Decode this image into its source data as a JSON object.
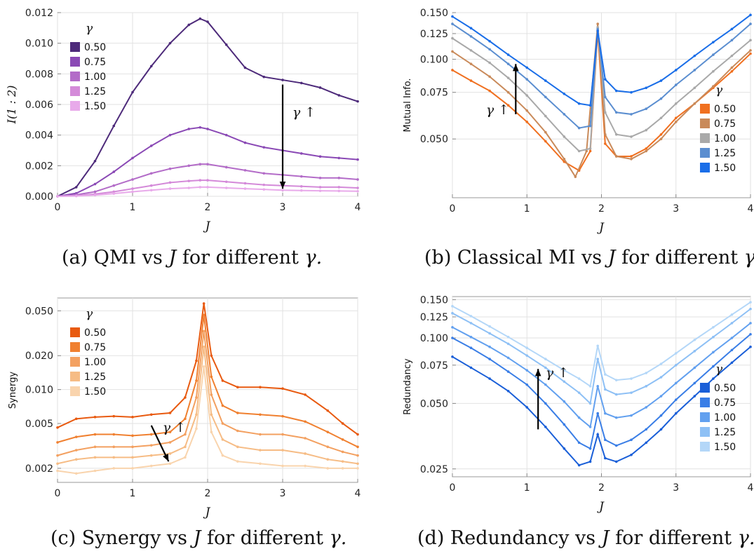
{
  "figure": {
    "captions": [
      {
        "label": "(a) QMI vs",
        "var": "J",
        "rest": "for different",
        "sym": "γ."
      },
      {
        "label": "(b) Classical MI vs",
        "var": "J",
        "rest": "for different",
        "sym": "γ."
      },
      {
        "label": "(c) Synergy vs",
        "var": "J",
        "rest": "for different",
        "sym": "γ."
      },
      {
        "label": "(d) Redundancy vs",
        "var": "J",
        "rest": "for different",
        "sym": "γ."
      }
    ]
  },
  "chart_data": [
    {
      "type": "line",
      "ylabel": "I(1 : 2)",
      "xlabel": "J",
      "xlim": [
        0,
        4
      ],
      "ylim": [
        0,
        0.012
      ],
      "log_y": false,
      "xticks": [
        "0",
        "1",
        "2",
        "3",
        "4"
      ],
      "yticks": [
        "0.000",
        "0.002",
        "0.004",
        "0.006",
        "0.008",
        "0.010",
        "0.012"
      ],
      "legend_title": "γ",
      "legend_placement": "upper-left",
      "annotation": "γ ↑",
      "annotation_direction": "down",
      "grid": true,
      "series": [
        {
          "name": "0.50",
          "color": "#4d2a7a",
          "x": [
            0,
            0.25,
            0.5,
            0.75,
            1,
            1.25,
            1.5,
            1.75,
            1.9,
            2,
            2.25,
            2.5,
            2.75,
            3,
            3.25,
            3.5,
            3.75,
            4
          ],
          "y": [
            0,
            0.0006,
            0.0023,
            0.0046,
            0.0068,
            0.0085,
            0.01,
            0.0112,
            0.0116,
            0.0114,
            0.0099,
            0.0084,
            0.0078,
            0.0076,
            0.0074,
            0.0071,
            0.0066,
            0.0062
          ]
        },
        {
          "name": "0.75",
          "color": "#8a49b5",
          "x": [
            0,
            0.25,
            0.5,
            0.75,
            1,
            1.25,
            1.5,
            1.75,
            1.9,
            2,
            2.25,
            2.5,
            2.75,
            3,
            3.25,
            3.5,
            3.75,
            4
          ],
          "y": [
            0,
            0.0002,
            0.0008,
            0.0016,
            0.0025,
            0.0033,
            0.004,
            0.0044,
            0.0045,
            0.0044,
            0.004,
            0.0035,
            0.0032,
            0.003,
            0.0028,
            0.0026,
            0.0025,
            0.0024
          ]
        },
        {
          "name": "1.00",
          "color": "#b36cc8",
          "x": [
            0,
            0.25,
            0.5,
            0.75,
            1,
            1.25,
            1.5,
            1.75,
            1.9,
            2,
            2.25,
            2.5,
            2.75,
            3,
            3.25,
            3.5,
            3.75,
            4
          ],
          "y": [
            0,
            0.0001,
            0.0003,
            0.0007,
            0.0011,
            0.0015,
            0.0018,
            0.002,
            0.0021,
            0.0021,
            0.0019,
            0.0017,
            0.0015,
            0.0014,
            0.0013,
            0.0012,
            0.0012,
            0.0011
          ]
        },
        {
          "name": "1.25",
          "color": "#d48ad9",
          "x": [
            0,
            0.25,
            0.5,
            0.75,
            1,
            1.25,
            1.5,
            1.75,
            1.9,
            2,
            2.25,
            2.5,
            2.75,
            3,
            3.25,
            3.5,
            3.75,
            4
          ],
          "y": [
            0,
            4e-05,
            0.00015,
            0.0003,
            0.0005,
            0.0007,
            0.0009,
            0.001,
            0.00105,
            0.00105,
            0.00095,
            0.00085,
            0.00075,
            0.0007,
            0.00065,
            0.0006,
            0.0006,
            0.00055
          ]
        },
        {
          "name": "1.50",
          "color": "#e8aaea",
          "x": [
            0,
            0.25,
            0.5,
            0.75,
            1,
            1.25,
            1.5,
            1.75,
            1.9,
            2,
            2.25,
            2.5,
            2.75,
            3,
            3.25,
            3.5,
            3.75,
            4
          ],
          "y": [
            0,
            2e-05,
            8e-05,
            0.00018,
            0.0003,
            0.0004,
            0.0005,
            0.00055,
            0.0006,
            0.0006,
            0.00055,
            0.0005,
            0.00045,
            0.0004,
            0.00038,
            0.00036,
            0.00035,
            0.00033
          ]
        }
      ]
    },
    {
      "type": "line",
      "ylabel": "Mutual Info.",
      "xlabel": "J",
      "xlim": [
        0,
        4
      ],
      "ylim": [
        0.03,
        0.15
      ],
      "log_y": true,
      "xticks": [
        "0",
        "1",
        "2",
        "3",
        "4"
      ],
      "yticks": [
        "0.050",
        "0.075",
        "0.100",
        "0.125",
        "0.150"
      ],
      "ytick_values": [
        0.05,
        0.075,
        0.1,
        0.125,
        0.15
      ],
      "legend_title": "γ",
      "legend_placement": "lower-right",
      "annotation": "γ ↑",
      "annotation_direction": "up",
      "grid": true,
      "series": [
        {
          "name": "0.50",
          "color": "#f07020",
          "x": [
            0,
            0.25,
            0.5,
            0.75,
            1,
            1.25,
            1.5,
            1.7,
            1.85,
            1.95,
            2.05,
            2.2,
            2.4,
            2.6,
            2.8,
            3,
            3.25,
            3.5,
            3.75,
            4
          ],
          "y": [
            0.091,
            0.083,
            0.076,
            0.067,
            0.058,
            0.049,
            0.041,
            0.038,
            0.045,
            0.128,
            0.048,
            0.043,
            0.043,
            0.046,
            0.052,
            0.06,
            0.068,
            0.078,
            0.09,
            0.105
          ]
        },
        {
          "name": "0.75",
          "color": "#c98a5a",
          "x": [
            0,
            0.25,
            0.5,
            0.75,
            1,
            1.25,
            1.5,
            1.65,
            1.8,
            1.95,
            2.05,
            2.2,
            2.4,
            2.6,
            2.8,
            3,
            3.25,
            3.5,
            3.75,
            4
          ],
          "y": [
            0.107,
            0.096,
            0.086,
            0.075,
            0.064,
            0.053,
            0.042,
            0.036,
            0.045,
            0.136,
            0.052,
            0.043,
            0.042,
            0.045,
            0.05,
            0.058,
            0.068,
            0.079,
            0.093,
            0.108
          ]
        },
        {
          "name": "1.00",
          "color": "#a9a9a9",
          "x": [
            0,
            0.25,
            0.5,
            0.75,
            1,
            1.25,
            1.5,
            1.7,
            1.85,
            1.95,
            2.05,
            2.2,
            2.4,
            2.6,
            2.8,
            3,
            3.25,
            3.5,
            3.75,
            4
          ],
          "y": [
            0.12,
            0.108,
            0.097,
            0.085,
            0.073,
            0.061,
            0.051,
            0.045,
            0.046,
            0.132,
            0.063,
            0.052,
            0.051,
            0.054,
            0.06,
            0.068,
            0.078,
            0.09,
            0.103,
            0.118
          ]
        },
        {
          "name": "1.25",
          "color": "#5b8ed0",
          "x": [
            0,
            0.25,
            0.5,
            0.75,
            1,
            1.25,
            1.5,
            1.7,
            1.85,
            1.95,
            2.05,
            2.2,
            2.4,
            2.6,
            2.8,
            3,
            3.25,
            3.5,
            3.75,
            4
          ],
          "y": [
            0.136,
            0.122,
            0.109,
            0.096,
            0.084,
            0.072,
            0.062,
            0.055,
            0.056,
            0.13,
            0.072,
            0.063,
            0.062,
            0.065,
            0.071,
            0.08,
            0.091,
            0.104,
            0.118,
            0.136
          ]
        },
        {
          "name": "1.50",
          "color": "#1a6ee8",
          "x": [
            0,
            0.25,
            0.5,
            0.75,
            1,
            1.25,
            1.5,
            1.7,
            1.85,
            1.95,
            2.05,
            2.2,
            2.4,
            2.6,
            2.8,
            3,
            3.25,
            3.5,
            3.75,
            4
          ],
          "y": [
            0.145,
            0.131,
            0.117,
            0.104,
            0.093,
            0.083,
            0.074,
            0.068,
            0.067,
            0.128,
            0.084,
            0.076,
            0.075,
            0.078,
            0.083,
            0.091,
            0.103,
            0.116,
            0.13,
            0.147
          ]
        }
      ]
    },
    {
      "type": "line",
      "ylabel": "Synergy",
      "xlabel": "J",
      "xlim": [
        0,
        4
      ],
      "ylim": [
        0.0015,
        0.065
      ],
      "log_y": true,
      "xticks": [
        "0",
        "1",
        "2",
        "3",
        "4"
      ],
      "yticks": [
        "0.002",
        "0.005",
        "0.010",
        "0.020",
        "0.050"
      ],
      "ytick_values": [
        0.002,
        0.005,
        0.01,
        0.02,
        0.05
      ],
      "legend_title": "γ",
      "legend_placement": "upper-left",
      "annotation": "γ ↑",
      "annotation_direction": "down",
      "grid": true,
      "series": [
        {
          "name": "0.50",
          "color": "#e85a10",
          "x": [
            0,
            0.25,
            0.5,
            0.75,
            1,
            1.25,
            1.5,
            1.7,
            1.85,
            1.95,
            2.05,
            2.2,
            2.4,
            2.7,
            3,
            3.3,
            3.6,
            3.8,
            4
          ],
          "y": [
            0.0046,
            0.0055,
            0.0057,
            0.0058,
            0.0057,
            0.006,
            0.0062,
            0.0085,
            0.018,
            0.058,
            0.02,
            0.012,
            0.0105,
            0.0105,
            0.0102,
            0.009,
            0.0065,
            0.005,
            0.004
          ]
        },
        {
          "name": "0.75",
          "color": "#f08030",
          "x": [
            0,
            0.25,
            0.5,
            0.75,
            1,
            1.25,
            1.5,
            1.7,
            1.85,
            1.95,
            2.05,
            2.2,
            2.4,
            2.7,
            3,
            3.3,
            3.6,
            3.8,
            4
          ],
          "y": [
            0.0034,
            0.0038,
            0.004,
            0.004,
            0.0039,
            0.004,
            0.0042,
            0.0055,
            0.012,
            0.046,
            0.013,
            0.0072,
            0.0062,
            0.006,
            0.0058,
            0.0052,
            0.0042,
            0.0036,
            0.0031
          ]
        },
        {
          "name": "1.00",
          "color": "#f3a060",
          "x": [
            0,
            0.25,
            0.5,
            0.75,
            1,
            1.25,
            1.5,
            1.7,
            1.85,
            1.95,
            2.05,
            2.2,
            2.4,
            2.7,
            3,
            3.3,
            3.6,
            3.8,
            4
          ],
          "y": [
            0.0026,
            0.0029,
            0.0031,
            0.0031,
            0.0031,
            0.0032,
            0.0034,
            0.004,
            0.0085,
            0.033,
            0.009,
            0.005,
            0.0043,
            0.004,
            0.004,
            0.0037,
            0.0031,
            0.0028,
            0.0026
          ]
        },
        {
          "name": "1.25",
          "color": "#f6bc85",
          "x": [
            0,
            0.25,
            0.5,
            0.75,
            1,
            1.25,
            1.5,
            1.7,
            1.85,
            1.95,
            2.05,
            2.2,
            2.4,
            2.7,
            3,
            3.3,
            3.6,
            3.8,
            4
          ],
          "y": [
            0.0022,
            0.0024,
            0.0025,
            0.0025,
            0.0025,
            0.0026,
            0.0027,
            0.0031,
            0.006,
            0.024,
            0.006,
            0.0036,
            0.0031,
            0.0029,
            0.0029,
            0.0027,
            0.0024,
            0.0023,
            0.0022
          ]
        },
        {
          "name": "1.50",
          "color": "#f9d4ad",
          "x": [
            0,
            0.25,
            0.5,
            0.75,
            1,
            1.25,
            1.5,
            1.7,
            1.85,
            1.95,
            2.05,
            2.2,
            2.4,
            2.7,
            3,
            3.3,
            3.6,
            3.8,
            4
          ],
          "y": [
            0.0019,
            0.0018,
            0.0019,
            0.002,
            0.002,
            0.0021,
            0.0022,
            0.0025,
            0.0045,
            0.016,
            0.0042,
            0.0026,
            0.0023,
            0.0022,
            0.0021,
            0.0021,
            0.002,
            0.002,
            0.002
          ]
        }
      ]
    },
    {
      "type": "line",
      "ylabel": "Redundancy",
      "xlabel": "J",
      "xlim": [
        0,
        4
      ],
      "ylim": [
        0.023,
        0.155
      ],
      "log_y": true,
      "xticks": [
        "0",
        "1",
        "2",
        "3",
        "4"
      ],
      "yticks": [
        "0.025",
        "0.050",
        "0.075",
        "0.100",
        "0.125",
        "0.150"
      ],
      "ytick_values": [
        0.025,
        0.05,
        0.075,
        0.1,
        0.125,
        0.15
      ],
      "legend_title": "γ",
      "legend_placement": "lower-right",
      "annotation": "γ ↑",
      "annotation_direction": "up",
      "grid": true,
      "series": [
        {
          "name": "0.50",
          "color": "#1a5fd8",
          "x": [
            0,
            0.25,
            0.5,
            0.75,
            1,
            1.25,
            1.5,
            1.7,
            1.85,
            1.95,
            2.05,
            2.2,
            2.4,
            2.6,
            2.8,
            3,
            3.25,
            3.5,
            3.75,
            4
          ],
          "y": [
            0.082,
            0.073,
            0.065,
            0.057,
            0.048,
            0.039,
            0.031,
            0.026,
            0.027,
            0.036,
            0.028,
            0.027,
            0.029,
            0.033,
            0.038,
            0.045,
            0.054,
            0.065,
            0.077,
            0.091
          ]
        },
        {
          "name": "0.75",
          "color": "#3a7ee6",
          "x": [
            0,
            0.25,
            0.5,
            0.75,
            1,
            1.25,
            1.5,
            1.7,
            1.85,
            1.95,
            2.05,
            2.2,
            2.4,
            2.6,
            2.8,
            3,
            3.25,
            3.5,
            3.75,
            4
          ],
          "y": [
            0.1,
            0.09,
            0.08,
            0.07,
            0.061,
            0.05,
            0.04,
            0.033,
            0.031,
            0.045,
            0.034,
            0.032,
            0.034,
            0.038,
            0.044,
            0.052,
            0.062,
            0.074,
            0.088,
            0.104
          ]
        },
        {
          "name": "1.00",
          "color": "#62a0ef",
          "x": [
            0,
            0.25,
            0.5,
            0.75,
            1,
            1.25,
            1.5,
            1.7,
            1.85,
            1.95,
            2.05,
            2.2,
            2.4,
            2.6,
            2.8,
            3,
            3.25,
            3.5,
            3.75,
            4
          ],
          "y": [
            0.112,
            0.101,
            0.091,
            0.081,
            0.071,
            0.061,
            0.051,
            0.043,
            0.039,
            0.06,
            0.045,
            0.043,
            0.044,
            0.048,
            0.054,
            0.062,
            0.073,
            0.086,
            0.1,
            0.117
          ]
        },
        {
          "name": "1.25",
          "color": "#8ec0f5",
          "x": [
            0,
            0.25,
            0.5,
            0.75,
            1,
            1.25,
            1.5,
            1.7,
            1.85,
            1.95,
            2.05,
            2.2,
            2.4,
            2.6,
            2.8,
            3,
            3.25,
            3.5,
            3.75,
            4
          ],
          "y": [
            0.13,
            0.117,
            0.105,
            0.094,
            0.083,
            0.073,
            0.063,
            0.056,
            0.05,
            0.08,
            0.058,
            0.055,
            0.056,
            0.06,
            0.066,
            0.075,
            0.087,
            0.101,
            0.117,
            0.136
          ]
        },
        {
          "name": "1.50",
          "color": "#b4d7f8",
          "x": [
            0,
            0.25,
            0.5,
            0.75,
            1,
            1.25,
            1.5,
            1.7,
            1.85,
            1.95,
            2.05,
            2.2,
            2.4,
            2.6,
            2.8,
            3,
            3.25,
            3.5,
            3.75,
            4
          ],
          "y": [
            0.14,
            0.126,
            0.113,
            0.101,
            0.09,
            0.08,
            0.071,
            0.065,
            0.06,
            0.092,
            0.068,
            0.064,
            0.065,
            0.069,
            0.076,
            0.085,
            0.098,
            0.112,
            0.128,
            0.146
          ]
        }
      ]
    }
  ]
}
